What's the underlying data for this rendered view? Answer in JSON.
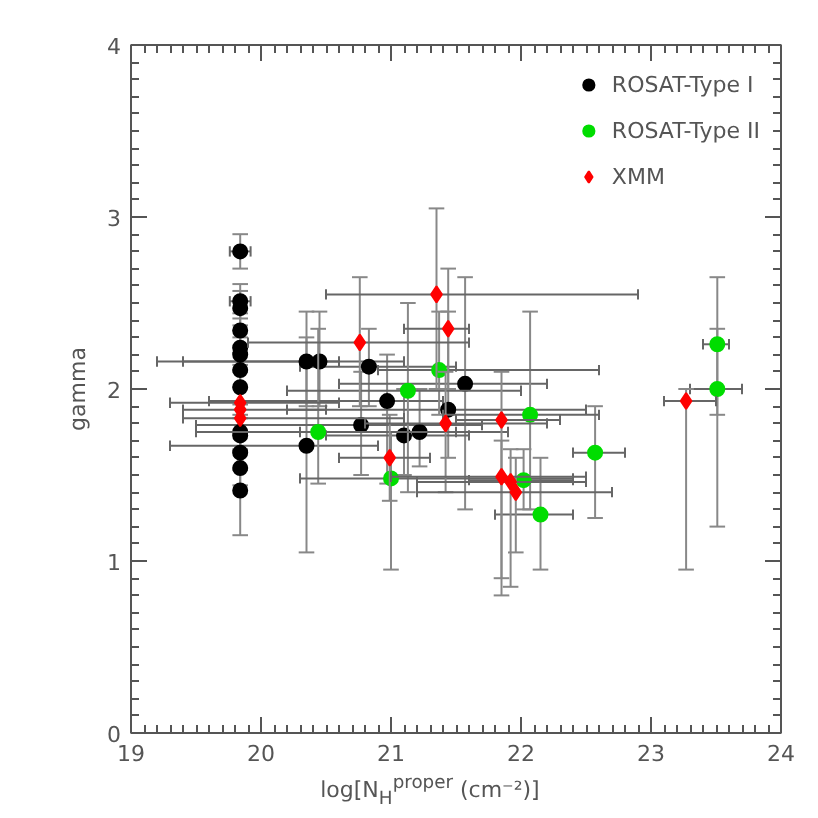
{
  "chart_data": {
    "type": "scatter",
    "xlabel": "log[N$_{H}$$^{proper}$ (cm⁻²)]",
    "ylabel": "gamma",
    "xlim": [
      19,
      24
    ],
    "ylim": [
      0,
      4
    ],
    "xticks": [
      19,
      20,
      21,
      22,
      23,
      24
    ],
    "yticks": [
      0,
      1,
      2,
      3,
      4
    ],
    "grid": false,
    "legend": "top right",
    "series": [
      {
        "name": "ROSAT-Type I",
        "color": "#000000",
        "marker": "circle",
        "x": [
          19.84,
          19.84,
          19.84,
          19.84,
          19.84,
          19.84,
          19.84,
          19.84,
          19.84,
          19.84,
          19.84,
          19.84,
          19.84,
          20.35,
          20.45,
          20.83,
          20.97,
          20.77,
          20.35,
          21.1,
          21.22,
          21.57,
          21.44
        ],
        "values": [
          2.8,
          2.51,
          2.47,
          2.34,
          2.24,
          2.2,
          2.11,
          2.01,
          1.75,
          1.73,
          1.63,
          1.54,
          1.41,
          2.16,
          2.16,
          2.13,
          1.93,
          1.79,
          1.67,
          1.73,
          1.75,
          2.03,
          1.88
        ],
        "errors": [
          0.1,
          0.1,
          0.1,
          0.1,
          0.1,
          0.1,
          0.1,
          0.1,
          0.1,
          0.1,
          0.1,
          0.1,
          [
            1.15,
            1.75
          ],
          [
            1.9,
            2.45
          ],
          [
            1.9,
            2.45
          ],
          [
            1.9,
            2.35
          ],
          [
            1.45,
            2.2
          ],
          [
            1.5,
            2.1
          ],
          [
            1.05,
            2.3
          ],
          [
            1.5,
            2.0
          ],
          [
            1.55,
            2.0
          ],
          [
            1.3,
            2.65
          ],
          [
            1.6,
            2.45
          ]
        ],
        "xerrors": [
          0.08,
          0.08,
          null,
          null,
          null,
          null,
          null,
          null,
          null,
          null,
          null,
          null,
          null,
          [
            19.2,
            20.6
          ],
          [
            19.4,
            21.1
          ],
          [
            20.3,
            21.5
          ],
          [
            19.6,
            21.4
          ],
          [
            19.5,
            21.7
          ],
          [
            19.3,
            20.9
          ],
          [
            20.5,
            21.6
          ],
          [
            20.3,
            21.9
          ],
          [
            20.6,
            22.2
          ],
          [
            20.2,
            22.5
          ]
        ]
      },
      {
        "name": "ROSAT-Type II",
        "color": "#00dd00",
        "marker": "circle",
        "x": [
          20.44,
          21.13,
          21.0,
          21.37,
          22.07,
          22.02,
          22.15,
          22.57,
          23.51,
          23.51
        ],
        "values": [
          1.75,
          1.99,
          1.48,
          2.11,
          1.85,
          1.47,
          1.27,
          1.63,
          2.26,
          2.0
        ],
        "errors": [
          [
            1.45,
            2.35
          ],
          [
            1.4,
            2.5
          ],
          [
            0.95,
            1.75
          ],
          [
            1.85,
            2.45
          ],
          [
            1.3,
            2.45
          ],
          [
            1.3,
            1.65
          ],
          [
            0.95,
            1.6
          ],
          [
            1.25,
            1.9
          ],
          [
            1.85,
            2.65
          ],
          [
            1.2,
            2.35
          ]
        ],
        "xerrors": [
          [
            19.5,
            21.5
          ],
          [
            20.2,
            22.0
          ],
          [
            20.3,
            22.4
          ],
          [
            20.9,
            22.6
          ],
          [
            21.4,
            22.6
          ],
          [
            21.6,
            22.4
          ],
          [
            21.8,
            22.4
          ],
          [
            22.4,
            22.8
          ],
          [
            23.4,
            23.6
          ],
          [
            23.3,
            23.7
          ]
        ]
      },
      {
        "name": "XMM",
        "color": "#ff0000",
        "marker": "diamond",
        "x": [
          19.84,
          19.84,
          19.84,
          20.76,
          20.99,
          21.35,
          21.44,
          21.42,
          21.85,
          21.85,
          21.92,
          21.96,
          23.27
        ],
        "values": [
          1.92,
          1.88,
          1.83,
          2.27,
          1.6,
          2.55,
          2.35,
          1.8,
          1.82,
          1.49,
          1.46,
          1.4,
          1.93
        ],
        "errors": [
          null,
          null,
          null,
          [
            1.9,
            2.65
          ],
          [
            1.35,
            1.85
          ],
          [
            2.0,
            3.05
          ],
          [
            2.0,
            2.7
          ],
          [
            1.4,
            2.1
          ],
          [
            0.8,
            2.1
          ],
          [
            0.9,
            1.7
          ],
          [
            0.85,
            1.65
          ],
          [
            1.05,
            1.6
          ],
          [
            0.95,
            2.0
          ]
        ],
        "xerrors": [
          [
            19.3,
            20.6
          ],
          [
            19.4,
            20.5
          ],
          [
            19.4,
            21.1
          ],
          [
            19.9,
            21.6
          ],
          [
            20.6,
            21.3
          ],
          [
            20.5,
            22.9
          ],
          [
            21.1,
            21.6
          ],
          [
            20.8,
            22.2
          ],
          [
            21.5,
            22.3
          ],
          [
            21.0,
            22.5
          ],
          [
            21.2,
            22.5
          ],
          [
            21.2,
            22.7
          ],
          [
            23.1,
            23.5
          ]
        ]
      }
    ]
  }
}
